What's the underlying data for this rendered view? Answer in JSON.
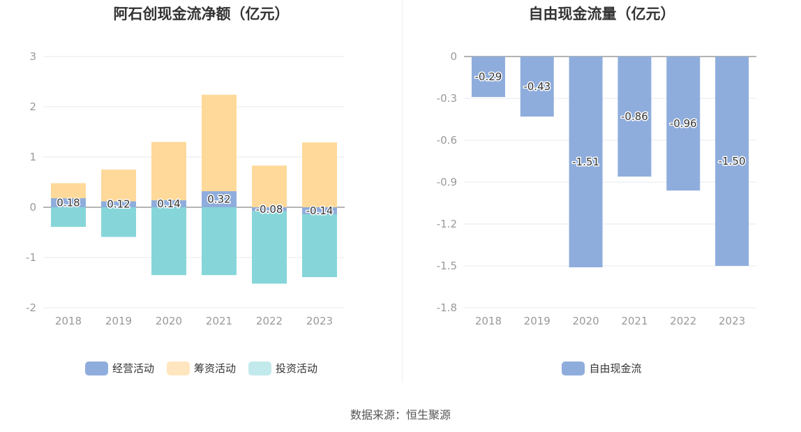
{
  "source": "数据来源：恒生聚源",
  "chart_data": [
    {
      "type": "bar",
      "stacked": true,
      "title": "阿石创现金流净额（亿元）",
      "categories": [
        "2018",
        "2019",
        "2020",
        "2021",
        "2022",
        "2023"
      ],
      "ylim": [
        -2,
        3
      ],
      "yticks": [
        "-2",
        "-1",
        "0",
        "1",
        "2",
        "3"
      ],
      "series": [
        {
          "name": "经营活动",
          "color": "#8FADDC",
          "values": [
            0.18,
            0.12,
            0.14,
            0.32,
            -0.08,
            -0.14
          ],
          "labels": [
            "0.18",
            "0.12",
            "0.14",
            "0.32",
            "-0.08",
            "-0.14"
          ]
        },
        {
          "name": "筹资活动",
          "color": "#FFD99A",
          "values": [
            0.3,
            0.63,
            1.16,
            1.92,
            0.83,
            1.29
          ]
        },
        {
          "name": "投资活动",
          "color": "#86D6D9",
          "values": [
            -0.39,
            -0.59,
            -1.35,
            -1.35,
            -1.44,
            -1.25
          ]
        }
      ],
      "legend_colors": [
        "#8FADDC",
        "#FFE6BF",
        "#C2E9EB"
      ],
      "legend": "bottom"
    },
    {
      "type": "bar",
      "title": "自由现金流量（亿元）",
      "categories": [
        "2018",
        "2019",
        "2020",
        "2021",
        "2022",
        "2023"
      ],
      "ylim": [
        -1.8,
        0
      ],
      "yticks": [
        "-1.8",
        "-1.5",
        "-1.2",
        "-0.9",
        "-0.6",
        "-0.3",
        "0"
      ],
      "series": [
        {
          "name": "自由现金流",
          "color": "#8FADDC",
          "values": [
            -0.29,
            -0.43,
            -1.51,
            -0.86,
            -0.96,
            -1.5
          ],
          "labels": [
            "-0.29",
            "-0.43",
            "-1.51",
            "-0.86",
            "-0.96",
            "-1.50"
          ]
        }
      ],
      "legend_colors": [
        "#8FADDC"
      ],
      "legend": "bottom"
    }
  ]
}
